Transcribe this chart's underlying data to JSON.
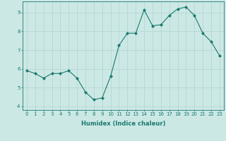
{
  "x": [
    0,
    1,
    2,
    3,
    4,
    5,
    6,
    7,
    8,
    9,
    10,
    11,
    12,
    13,
    14,
    15,
    16,
    17,
    18,
    19,
    20,
    21,
    22,
    23
  ],
  "y": [
    5.9,
    5.75,
    5.5,
    5.75,
    5.75,
    5.9,
    5.5,
    4.75,
    4.35,
    4.45,
    5.6,
    7.25,
    7.9,
    7.9,
    9.15,
    8.3,
    8.35,
    8.85,
    9.2,
    9.3,
    8.85,
    7.9,
    7.45,
    6.7
  ],
  "line_color": "#1a7a6e",
  "marker": "D",
  "marker_size": 2.0,
  "bg_color": "#cce8e5",
  "grid_color": "#b0d4d0",
  "xlabel": "Humidex (Indice chaleur)",
  "xlim": [
    -0.5,
    23.5
  ],
  "ylim": [
    3.8,
    9.6
  ],
  "yticks": [
    4,
    5,
    6,
    7,
    8,
    9
  ],
  "xticks": [
    0,
    1,
    2,
    3,
    4,
    5,
    6,
    7,
    8,
    9,
    10,
    11,
    12,
    13,
    14,
    15,
    16,
    17,
    18,
    19,
    20,
    21,
    22,
    23
  ],
  "tick_color": "#1a7a6e",
  "label_color": "#1a7a6e",
  "axis_color": "#1a7a6e",
  "tick_fontsize": 5.0,
  "xlabel_fontsize": 6.0
}
